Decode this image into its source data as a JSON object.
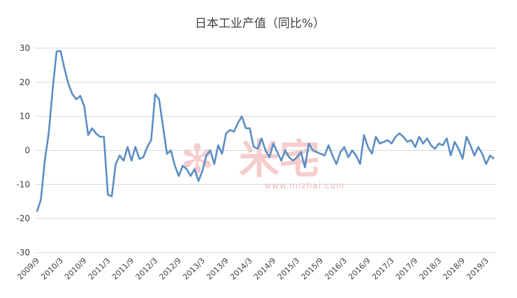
{
  "chart_data": {
    "type": "line",
    "title": "日本工业产值（同比%）",
    "xlabel": "",
    "ylabel": "",
    "ylim": [
      -30,
      30
    ],
    "yticks": [
      30,
      20,
      10,
      0,
      -10,
      -20,
      -30
    ],
    "grid": true,
    "legend": "none",
    "line_color": "#5b8ec4",
    "x_start": "2009/9",
    "x_tick_labels": [
      "2009/9",
      "2010/3",
      "2010/9",
      "2011/3",
      "2011/9",
      "2012/3",
      "2012/9",
      "2013/3",
      "2013/9",
      "2014/3",
      "2014/9",
      "2015/3",
      "2015/9",
      "2016/3",
      "2016/9",
      "2017/3",
      "2017/9",
      "2018/3",
      "2018/9",
      "2019/3"
    ],
    "series": [
      {
        "values": [
          -18,
          -14.5,
          -3,
          5,
          18,
          29,
          29.2,
          24,
          19.5,
          16.5,
          15,
          16,
          13,
          4.5,
          6.5,
          5,
          4,
          4,
          -13,
          -13.5,
          -4,
          -1.5,
          -3,
          1,
          -3,
          1,
          -2.5,
          -2,
          1,
          3,
          16.5,
          15,
          7,
          -1,
          0,
          -4.5,
          -7.5,
          -4.5,
          -5.5,
          -7.5,
          -5.5,
          -9,
          -6,
          -1.5,
          0,
          -4,
          1.5,
          -1,
          5,
          6,
          5.5,
          8,
          10,
          6.5,
          6.5,
          1,
          0.5,
          3.5,
          0,
          -2,
          2,
          -0.5,
          -3,
          0,
          -2,
          -3,
          -2,
          -0.5,
          -5,
          2,
          0,
          -0.5,
          -1,
          -1.5,
          1.5,
          -1.5,
          -4,
          -0.5,
          1,
          -2,
          0,
          -1.5,
          -4,
          4.5,
          1,
          -1,
          4,
          2,
          2.5,
          3,
          2,
          4,
          5,
          4,
          2.5,
          3,
          1,
          4,
          2,
          3.5,
          1.5,
          0.5,
          2,
          1.5,
          3.5,
          -1.5,
          2.5,
          0.5,
          -2.5,
          4,
          1.5,
          -1.5,
          1,
          -1,
          -4,
          -1.5,
          -2.5
        ]
      }
    ]
  },
  "watermark": {
    "glyphs": "米宅",
    "url": "www.mizhai.com"
  }
}
